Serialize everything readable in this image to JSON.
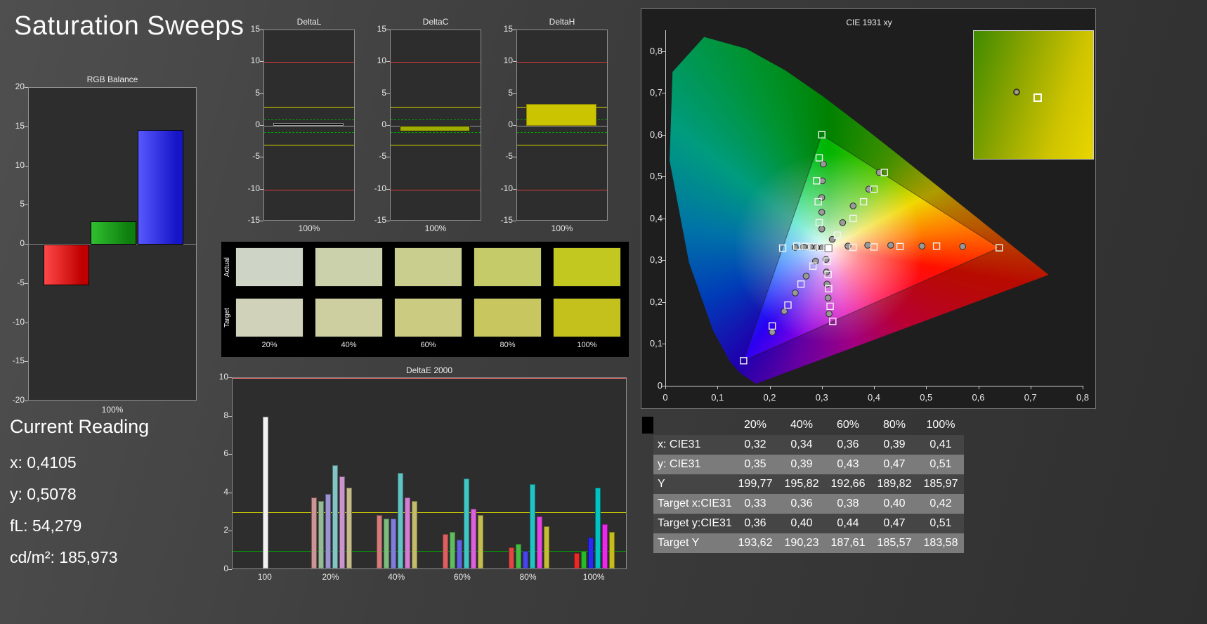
{
  "page": {
    "title": "Saturation Sweeps"
  },
  "current_reading": {
    "title": "Current Reading",
    "lines": [
      "x: 0,4105",
      "y: 0,5078",
      "fL: 54,279",
      "cd/m²: 185,973"
    ]
  },
  "swatches": {
    "row_labels": [
      "Actual",
      "Target"
    ],
    "col_labels": [
      "20%",
      "40%",
      "60%",
      "80%",
      "100%"
    ],
    "actual": [
      "#ced5c6",
      "#cbd1ab",
      "#c9ce8e",
      "#c6cb69",
      "#c2c81f"
    ],
    "target": [
      "#d0d2ba",
      "#cdcfa0",
      "#cbcb82",
      "#c8c75f",
      "#c4c11d"
    ]
  },
  "chart_data": [
    {
      "type": "bar",
      "title": "RGB Balance",
      "xlabel": "100%",
      "categories": [
        "Red",
        "Green",
        "Blue"
      ],
      "values": [
        -5.2,
        3.0,
        14.6
      ],
      "colors": [
        "#c00000",
        "#0e7e0e",
        "#1616c8"
      ],
      "colors_light": [
        "#ff4848",
        "#30c030",
        "#5858ff"
      ],
      "ylim": [
        -20,
        20
      ],
      "y_ticks": [
        20,
        15,
        10,
        5,
        0,
        -5,
        -10,
        -15,
        -20
      ]
    },
    {
      "type": "bar",
      "title": "DeltaL",
      "xlabel": "100%",
      "categories": [
        "100%"
      ],
      "values": [
        0.4
      ],
      "bar_color": "#0a0a0a",
      "bar_border": "#9a9a9a",
      "ylim": [
        -15,
        15
      ],
      "y_ticks": [
        15,
        10,
        5,
        0,
        -5,
        -10,
        -15
      ],
      "limit_lines": {
        "red": 10,
        "yellow": 3,
        "green": 1
      }
    },
    {
      "type": "bar",
      "title": "DeltaC",
      "xlabel": "100%",
      "categories": [
        "100%"
      ],
      "values": [
        -0.9
      ],
      "bar_color": "#9fae00",
      "bar_border": "#2a2a00",
      "ylim": [
        -15,
        15
      ],
      "y_ticks": [
        15,
        10,
        5,
        0,
        -5,
        -10,
        -15
      ],
      "limit_lines": {
        "red": 10,
        "yellow": 3,
        "green": 1
      }
    },
    {
      "type": "bar",
      "title": "DeltaH",
      "xlabel": "100%",
      "categories": [
        "100%"
      ],
      "values": [
        3.4
      ],
      "bar_color": "#cbc400",
      "bar_border": "#8a8400",
      "ylim": [
        -15,
        15
      ],
      "y_ticks": [
        15,
        10,
        5,
        0,
        -5,
        -10,
        -15
      ],
      "limit_lines": {
        "red": 10,
        "yellow": 3,
        "green": 1
      }
    },
    {
      "type": "bar",
      "title": "DeltaE 2000",
      "ylim": [
        0,
        10
      ],
      "y_ticks": [
        10,
        8,
        6,
        4,
        2,
        0
      ],
      "limit_lines": {
        "red": 10,
        "yellow": 3,
        "green": 1
      },
      "groups": [
        {
          "label": "100",
          "values": [
            7.9
          ],
          "colors": [
            "#f2f2f2"
          ]
        },
        {
          "label": "20%",
          "values": [
            3.7,
            3.5,
            3.9,
            5.4,
            4.8,
            4.2
          ],
          "colors": [
            "#cc9494",
            "#94bc94",
            "#9a94d4",
            "#84c4c4",
            "#cc94cc",
            "#c4bc88"
          ]
        },
        {
          "label": "40%",
          "values": [
            2.8,
            2.6,
            2.6,
            5.0,
            3.7,
            3.5
          ],
          "colors": [
            "#d47c7c",
            "#7cbc7c",
            "#807cdc",
            "#60c4c4",
            "#d47cd4",
            "#c4bc6c"
          ]
        },
        {
          "label": "60%",
          "values": [
            1.8,
            1.9,
            1.5,
            4.7,
            3.1,
            2.8
          ],
          "colors": [
            "#dc6060",
            "#60bc60",
            "#6460e4",
            "#40c4c4",
            "#dc60dc",
            "#c4bc50"
          ]
        },
        {
          "label": "80%",
          "values": [
            1.1,
            1.3,
            0.9,
            4.4,
            2.7,
            2.2
          ],
          "colors": [
            "#e44444",
            "#44bc44",
            "#4844ec",
            "#20c4c4",
            "#e444e4",
            "#c4bc34"
          ]
        },
        {
          "label": "100%",
          "values": [
            0.8,
            0.9,
            1.6,
            4.2,
            2.3,
            1.9
          ],
          "colors": [
            "#ec2828",
            "#28bc28",
            "#2c28f4",
            "#00c4c4",
            "#ec28ec",
            "#c4bc18"
          ]
        }
      ]
    },
    {
      "type": "scatter",
      "title": "CIE 1931 xy",
      "xlim": [
        0,
        0.8
      ],
      "ylim": [
        0,
        0.85
      ],
      "x_tick_labels": [
        "0",
        "0,1",
        "0,2",
        "0,3",
        "0,4",
        "0,5",
        "0,6",
        "0,7",
        "0,8"
      ],
      "y_tick_labels": [
        "0",
        "0,1",
        "0,2",
        "0,3",
        "0,4",
        "0,5",
        "0,6",
        "0,7",
        "0,8"
      ],
      "white_point": [
        0.3127,
        0.329
      ],
      "gamut_triangle": [
        [
          0.64,
          0.33
        ],
        [
          0.3,
          0.6
        ],
        [
          0.15,
          0.06
        ]
      ],
      "targets": [
        [
          0.33,
          0.36
        ],
        [
          0.36,
          0.4
        ],
        [
          0.38,
          0.44
        ],
        [
          0.4,
          0.47
        ],
        [
          0.42,
          0.51
        ],
        [
          0.36,
          0.331
        ],
        [
          0.4,
          0.332
        ],
        [
          0.45,
          0.333
        ],
        [
          0.52,
          0.334
        ],
        [
          0.64,
          0.33
        ],
        [
          0.295,
          0.39
        ],
        [
          0.293,
          0.44
        ],
        [
          0.29,
          0.49
        ],
        [
          0.295,
          0.545
        ],
        [
          0.3,
          0.6
        ],
        [
          0.283,
          0.286
        ],
        [
          0.26,
          0.243
        ],
        [
          0.235,
          0.193
        ],
        [
          0.205,
          0.143
        ],
        [
          0.15,
          0.06
        ],
        [
          0.298,
          0.331
        ],
        [
          0.283,
          0.332
        ],
        [
          0.268,
          0.333
        ],
        [
          0.252,
          0.334
        ],
        [
          0.225,
          0.329
        ],
        [
          0.31,
          0.298
        ],
        [
          0.312,
          0.266
        ],
        [
          0.313,
          0.232
        ],
        [
          0.316,
          0.19
        ],
        [
          0.321,
          0.154
        ]
      ],
      "measured": [
        [
          0.32,
          0.35
        ],
        [
          0.34,
          0.39
        ],
        [
          0.36,
          0.43
        ],
        [
          0.39,
          0.47
        ],
        [
          0.41,
          0.51
        ],
        [
          0.35,
          0.334
        ],
        [
          0.388,
          0.336
        ],
        [
          0.432,
          0.336
        ],
        [
          0.492,
          0.334
        ],
        [
          0.57,
          0.333
        ],
        [
          0.3,
          0.375
        ],
        [
          0.3,
          0.415
        ],
        [
          0.3,
          0.45
        ],
        [
          0.301,
          0.49
        ],
        [
          0.303,
          0.53
        ],
        [
          0.288,
          0.298
        ],
        [
          0.27,
          0.262
        ],
        [
          0.249,
          0.222
        ],
        [
          0.228,
          0.178
        ],
        [
          0.205,
          0.128
        ],
        [
          0.301,
          0.33
        ],
        [
          0.29,
          0.331
        ],
        [
          0.278,
          0.332
        ],
        [
          0.265,
          0.332
        ],
        [
          0.249,
          0.331
        ],
        [
          0.308,
          0.302
        ],
        [
          0.309,
          0.272
        ],
        [
          0.31,
          0.243
        ],
        [
          0.312,
          0.21
        ],
        [
          0.314,
          0.172
        ]
      ],
      "inset": {
        "measured": [
          33,
          45
        ],
        "target": [
          50,
          49
        ]
      }
    },
    {
      "type": "table",
      "columns": [
        "20%",
        "40%",
        "60%",
        "80%",
        "100%"
      ],
      "rows": [
        {
          "label": "x: CIE31",
          "values": [
            "0,32",
            "0,34",
            "0,36",
            "0,39",
            "0,41"
          ]
        },
        {
          "label": "y: CIE31",
          "values": [
            "0,35",
            "0,39",
            "0,43",
            "0,47",
            "0,51"
          ]
        },
        {
          "label": "Y",
          "values": [
            "199,77",
            "195,82",
            "192,66",
            "189,82",
            "185,97"
          ]
        },
        {
          "label": "Target x:CIE31",
          "values": [
            "0,33",
            "0,36",
            "0,38",
            "0,40",
            "0,42"
          ]
        },
        {
          "label": "Target y:CIE31",
          "values": [
            "0,36",
            "0,40",
            "0,44",
            "0,47",
            "0,51"
          ]
        },
        {
          "label": "Target Y",
          "values": [
            "193,62",
            "190,23",
            "187,61",
            "185,57",
            "183,58"
          ]
        }
      ]
    }
  ]
}
